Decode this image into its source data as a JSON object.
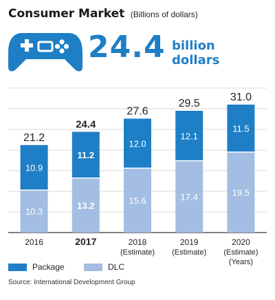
{
  "header": {
    "title": "Consumer Market",
    "units": "(Billions of dollars)",
    "highlight_value": "24.4",
    "highlight_unit_line1": "billion",
    "highlight_unit_line2": "dollars",
    "icon": "game-controller-icon"
  },
  "colors": {
    "package": "#1e7fc6",
    "dlc": "#a3bde3",
    "accent": "#1e7fc6",
    "grid": "#d9d9d9"
  },
  "chart_data": {
    "type": "bar",
    "stacked": true,
    "categories": [
      [
        "2016"
      ],
      [
        "2017"
      ],
      [
        "2018",
        "(Estimate)"
      ],
      [
        "2019",
        "(Estimate)"
      ],
      [
        "2020",
        "(Estimate)",
        "(Years)"
      ]
    ],
    "highlight_category_index": 1,
    "series": [
      {
        "name": "DLC",
        "values": [
          10.3,
          13.2,
          15.6,
          17.4,
          19.5
        ]
      },
      {
        "name": "Package",
        "values": [
          10.9,
          11.2,
          12.0,
          12.1,
          11.5
        ]
      }
    ],
    "totals": [
      "21.2",
      "24.4",
      "27.6",
      "29.5",
      "31.0"
    ],
    "ylim": [
      0,
      35
    ],
    "grid": true,
    "legend_position": "bottom-left"
  },
  "legend": {
    "package_label": "Package",
    "dlc_label": "DLC"
  },
  "source": "Source: International Development Group"
}
